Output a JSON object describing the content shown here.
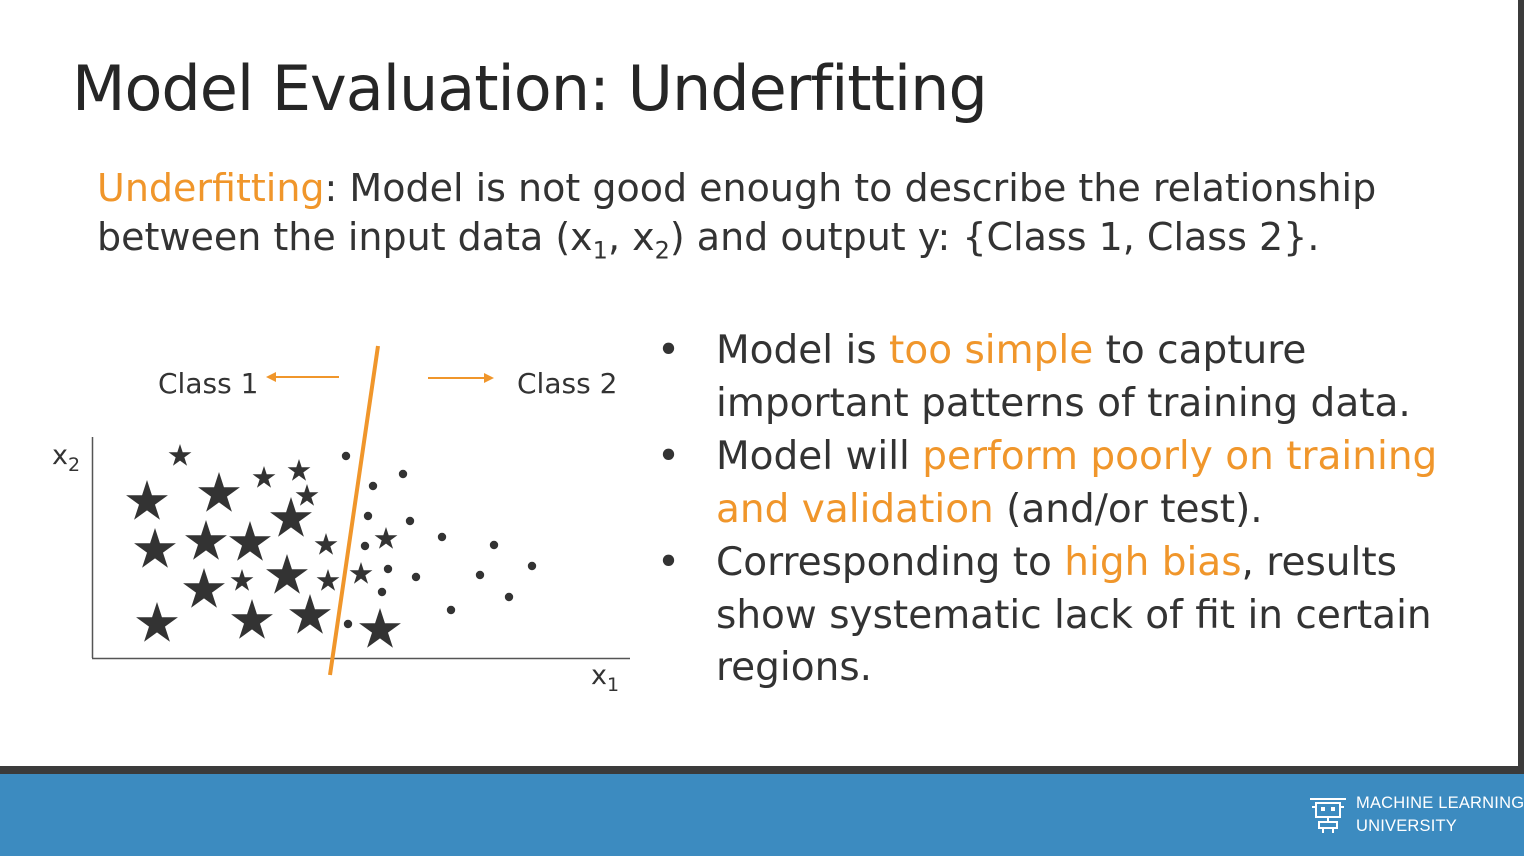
{
  "slide": {
    "title": "Model Evaluation: Underfitting"
  },
  "definition": {
    "term": "Underfitting",
    "text_1": ": Model is not good enough to describe the relationship between the input data (x",
    "sub_1": "1",
    "text_2": ", x",
    "sub_2": "2",
    "text_3": ") and output y: {Class 1, Class 2}."
  },
  "diagram": {
    "class1_label": "Class 1",
    "class2_label": "Class 2",
    "x_axis_label": "x",
    "x_axis_sub": "1",
    "y_axis_label": "x",
    "y_axis_sub": "2",
    "boundary_color": "#f0962b",
    "mark_color": "#333333"
  },
  "bullets": [
    {
      "parts": [
        {
          "text": "Model is ",
          "hl": false
        },
        {
          "text": "too simple",
          "hl": true
        },
        {
          "text": " to capture important patterns of training data.",
          "hl": false
        }
      ]
    },
    {
      "parts": [
        {
          "text": "Model will ",
          "hl": false
        },
        {
          "text": "perform poorly on training and validation",
          "hl": true
        },
        {
          "text": " (and/or test).",
          "hl": false
        }
      ]
    },
    {
      "parts": [
        {
          "text": "Corresponding to ",
          "hl": false
        },
        {
          "text": "high bias",
          "hl": true
        },
        {
          "text": ", results show systematic lack of fit in certain regions.",
          "hl": false
        }
      ]
    }
  ],
  "footer": {
    "brand_line_1": "MACHINE LEARNING",
    "brand_line_2": "UNIVERSITY",
    "brand_icon": "robot-icon",
    "accent_color": "#f0962b",
    "footer_color": "#3c8bc0"
  }
}
